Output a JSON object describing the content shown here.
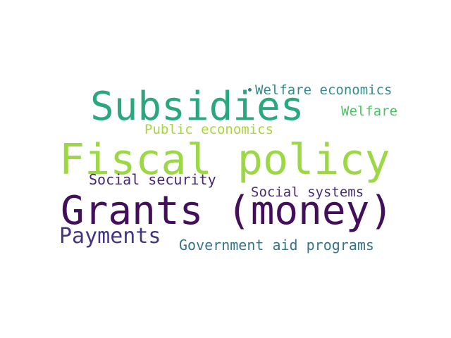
{
  "words": [
    {
      "id": "grants",
      "text": "Grants (money)",
      "color": "#440f5a"
    },
    {
      "id": "fiscal",
      "text": "Fiscal policy",
      "color": "#9bd844"
    },
    {
      "id": "subsidies",
      "text": "Subsidies",
      "color": "#2aa87c"
    },
    {
      "id": "payments",
      "text": "Payments",
      "color": "#45357f"
    },
    {
      "id": "social-security",
      "text": "Social security",
      "color": "#482576"
    },
    {
      "id": "social-systems",
      "text": "Social systems",
      "color": "#472a7a"
    },
    {
      "id": "government-aid",
      "text": "Government aid programs",
      "color": "#37748c"
    },
    {
      "id": "public-economics",
      "text": "Public economics",
      "color": "#a6d73e"
    },
    {
      "id": "welfare-economics",
      "text": "Welfare economics",
      "color": "#348a8d"
    },
    {
      "id": "welfare",
      "text": "Welfare",
      "color": "#4ec268"
    }
  ],
  "dot_color": "#2e7c8e"
}
